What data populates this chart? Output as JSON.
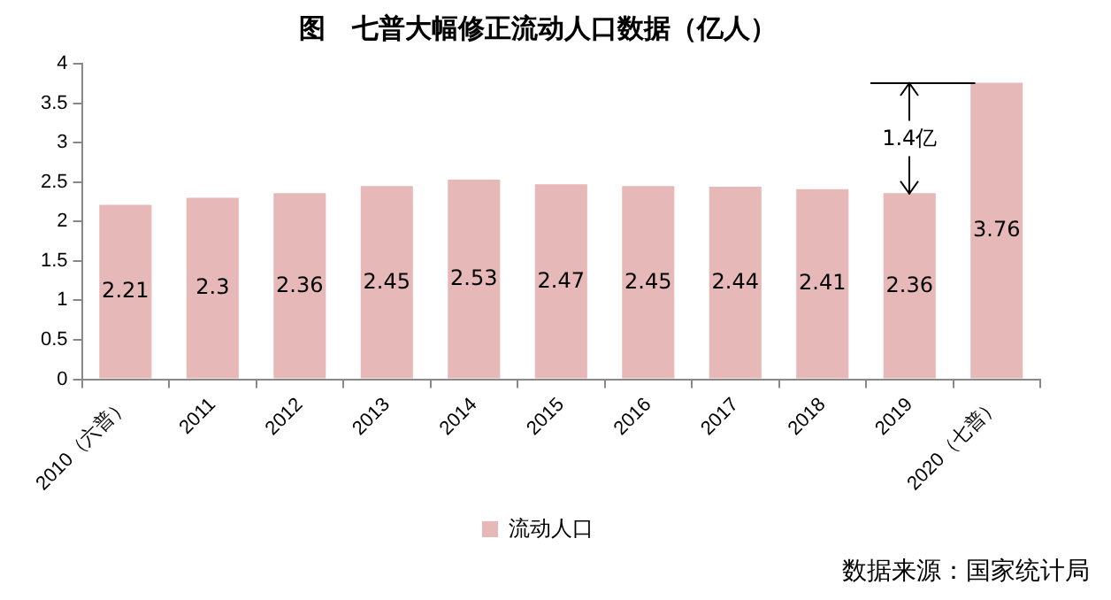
{
  "chart_data": {
    "type": "bar",
    "title": "图　七普大幅修正流动人口数据（亿人）",
    "categories": [
      "2010（六普）",
      "2011",
      "2012",
      "2013",
      "2014",
      "2015",
      "2016",
      "2017",
      "2018",
      "2019",
      "2020（七普）"
    ],
    "series": [
      {
        "name": "流动人口",
        "color": "#e6b8b7",
        "values": [
          2.21,
          2.3,
          2.36,
          2.45,
          2.53,
          2.47,
          2.45,
          2.44,
          2.41,
          2.36,
          3.76
        ]
      }
    ],
    "ylim": [
      0,
      4
    ],
    "yticks": [
      0,
      0.5,
      1,
      1.5,
      2,
      2.5,
      3,
      3.5,
      4
    ],
    "grid": false,
    "legend": "bottom",
    "data_labels": true,
    "annotations": [
      {
        "text": "1.4亿",
        "x": "2019",
        "y": 2.36
      },
      "数据来源：国家统计局"
    ]
  }
}
